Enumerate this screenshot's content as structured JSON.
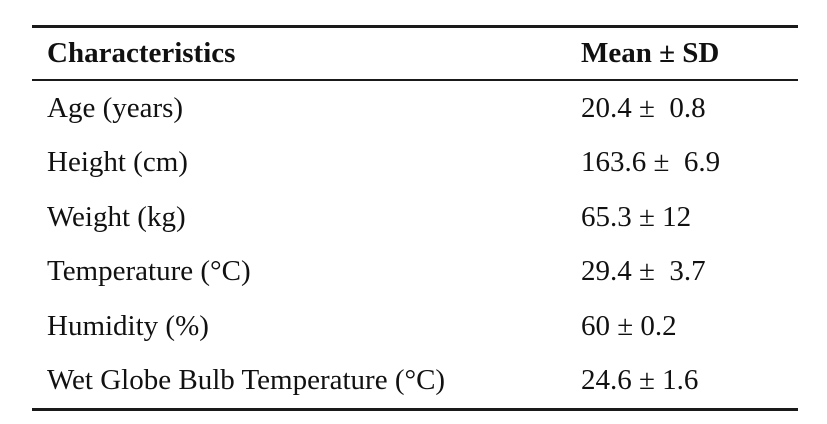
{
  "table": {
    "headers": [
      "Characteristics",
      "Mean ± SD"
    ],
    "rows": [
      [
        "Age (years)",
        "20.4 ±  0.8"
      ],
      [
        "Height (cm)",
        "163.6 ±  6.9"
      ],
      [
        "Weight (kg)",
        "65.3 ± 12"
      ],
      [
        "Temperature (°C)",
        "29.4 ±  3.7"
      ],
      [
        "Humidity (%)",
        "60 ± 0.2"
      ],
      [
        "Wet Globe Bulb Temperature (°C)",
        "24.6 ± 1.6"
      ]
    ]
  }
}
